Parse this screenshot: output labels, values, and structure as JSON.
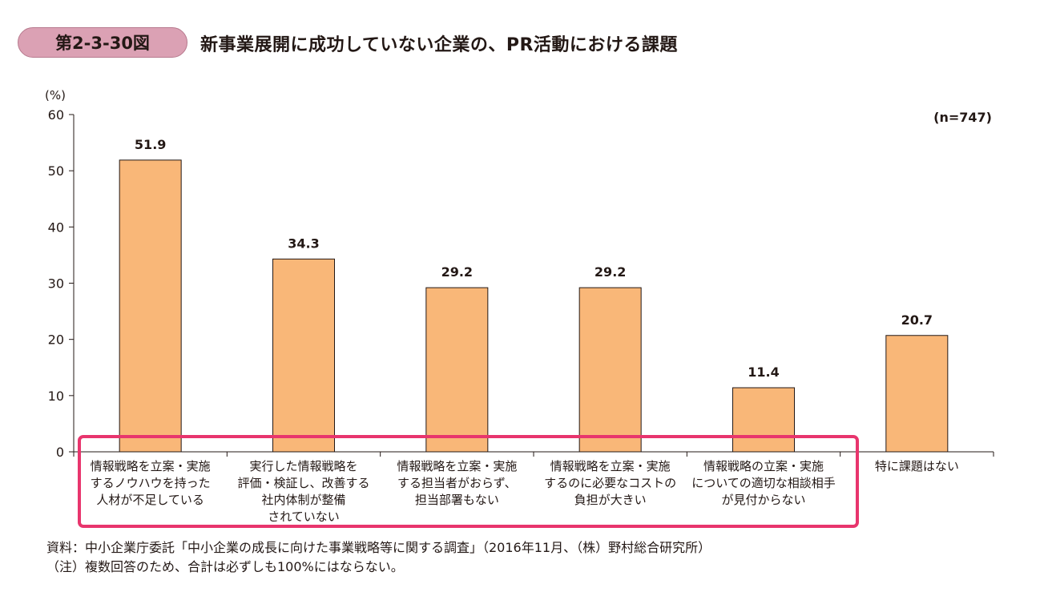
{
  "header": {
    "figure_number": "第2-3-30図",
    "title": "新事業展開に成功していない企業の、PR活動における課題"
  },
  "chart_data": {
    "type": "bar",
    "title": "新事業展開に成功していない企業の、PR活動における課題",
    "ylabel": "(%)",
    "xlabel": "",
    "ylim": [
      0,
      60
    ],
    "yticks": [
      0,
      10,
      20,
      30,
      40,
      50,
      60
    ],
    "sample_size": "(n=747)",
    "bar_color": "#f9b778",
    "highlight_color": "#e8356d",
    "categories": [
      [
        "情報戦略を立案・実施",
        "するノウハウを持った",
        "人材が不足している"
      ],
      [
        "実行した情報戦略を",
        "評価・検証し、改善する",
        "社内体制が整備",
        "されていない"
      ],
      [
        "情報戦略を立案・実施",
        "する担当者がおらず、",
        "担当部署もない"
      ],
      [
        "情報戦略を立案・実施",
        "するのに必要なコストの",
        "負担が大きい"
      ],
      [
        "情報戦略の立案・実施",
        "についての適切な相談相手",
        "が見付からない"
      ],
      [
        "特に課題はない"
      ]
    ],
    "values": [
      51.9,
      34.3,
      29.2,
      29.2,
      11.4,
      20.7
    ],
    "value_labels": [
      "51.9",
      "34.3",
      "29.2",
      "29.2",
      "11.4",
      "20.7"
    ]
  },
  "footer": {
    "source": "資料：中小企業庁委託「中小企業の成長に向けた事業戦略等に関する調査」（2016年11月、（株）野村総合研究所）",
    "note": "（注）複数回答のため、合計は必ずしも100%にはならない。"
  }
}
